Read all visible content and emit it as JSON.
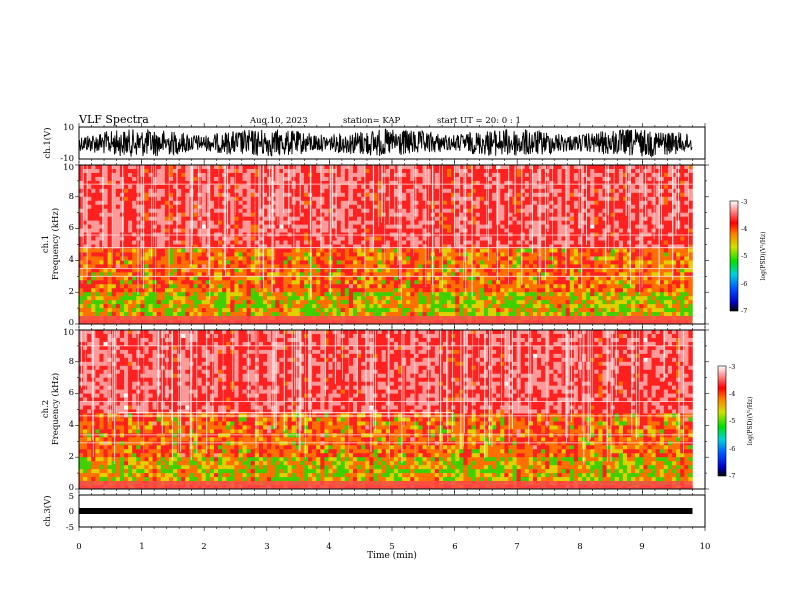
{
  "header": {
    "title": "VLF Spectra",
    "date": "Aug.10, 2023",
    "station": "station= KAP",
    "start": "start UT = 20: 0 : 1"
  },
  "chart_data": [
    {
      "type": "line",
      "panel": "ch1-waveform",
      "ylabel": "ch.1(V)",
      "ylim": [
        -10,
        10
      ],
      "y_ticks": [
        "10",
        "-10"
      ],
      "description_of_series": "dense oscillating signal filling most of range",
      "x_range_min": [
        0,
        9.8
      ]
    },
    {
      "type": "heatmap",
      "panel": "ch1-spectrogram",
      "ylabel_line1": "ch.1",
      "ylabel_line2": "Frequency (kHz)",
      "ylim": [
        0,
        10
      ],
      "y_ticks": [
        "0",
        "2",
        "4",
        "6",
        "8",
        "10"
      ],
      "x_range_min": [
        0,
        9.8
      ],
      "colorbar": {
        "label": "log(PSD)(V²/Hz)",
        "range": [
          -7,
          -3
        ],
        "ticks": [
          "-3",
          "-4",
          "-5",
          "-6",
          "-7"
        ]
      }
    },
    {
      "type": "heatmap",
      "panel": "ch2-spectrogram",
      "ylabel_line1": "ch.2",
      "ylabel_line2": "Frequency (kHz)",
      "ylim": [
        0,
        10
      ],
      "y_ticks": [
        "0",
        "2",
        "4",
        "6",
        "8",
        "10"
      ],
      "x_range_min": [
        0,
        9.8
      ],
      "colorbar": {
        "label": "log(PSD)(V²/Hz)",
        "range": [
          -7,
          -3
        ],
        "ticks": [
          "-3",
          "-4",
          "-5",
          "-6",
          "-7"
        ]
      }
    },
    {
      "type": "line",
      "panel": "ch3-waveform",
      "ylabel": "ch.3(V)",
      "ylim": [
        -5,
        5
      ],
      "y_ticks": [
        "5",
        "0",
        "-5"
      ],
      "x_range_min": [
        0,
        9.8
      ]
    }
  ],
  "x_axis": {
    "label": "Time (min)",
    "ticks": [
      "0",
      "1",
      "2",
      "3",
      "4",
      "5",
      "6",
      "7",
      "8",
      "9",
      "10"
    ],
    "xlim": [
      0,
      10
    ]
  }
}
